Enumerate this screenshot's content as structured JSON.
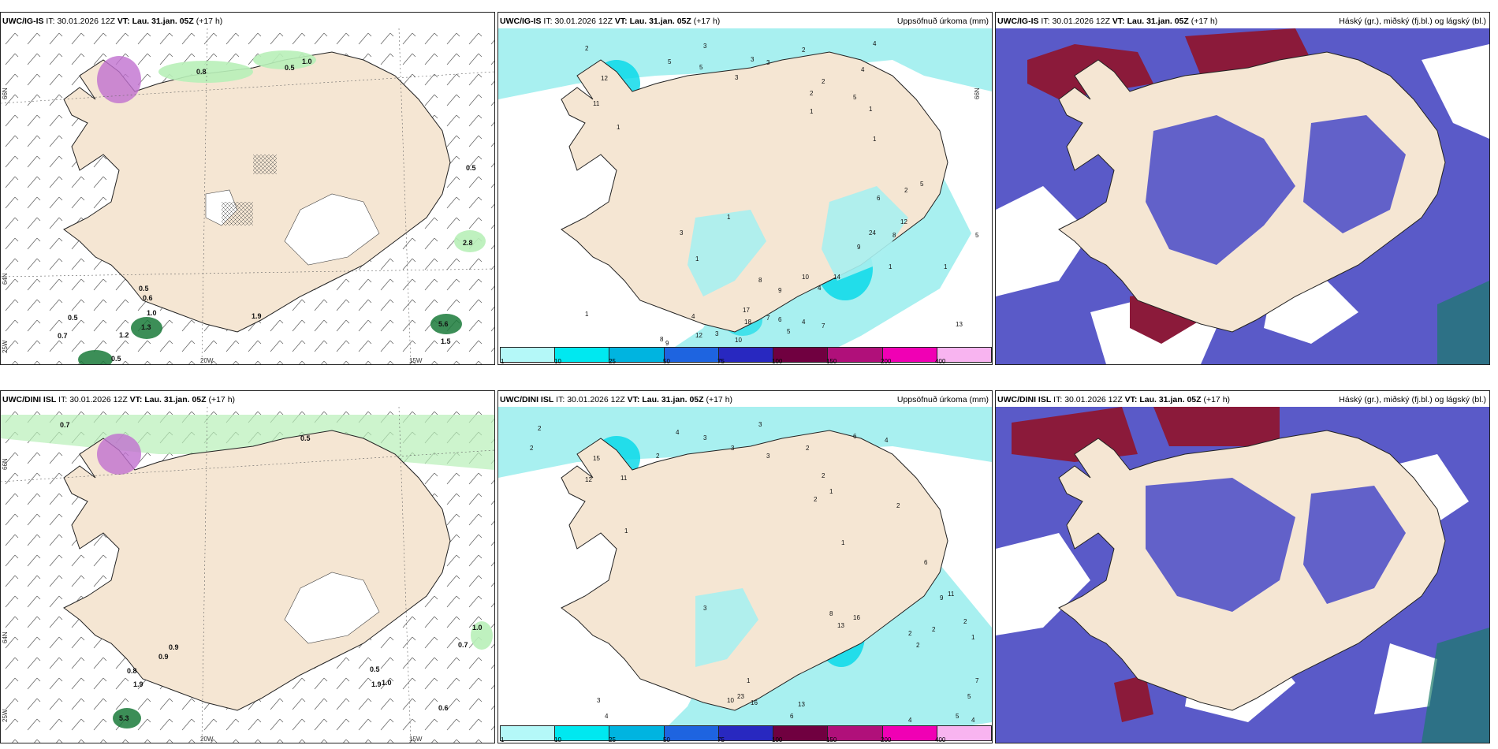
{
  "colors": {
    "land": "#f5e6d3",
    "precip": "#a8f0f0",
    "precip_strong": "#00d8e8",
    "cloud_low": "#5a5ac8",
    "cloud_high": "#8b1a3a",
    "green_precip": "#b8f0b8",
    "green_dark": "#1a7a3a"
  },
  "panels": [
    {
      "model": "UWC/IG-IS",
      "it_label": "IT:",
      "it": "30.01.2026 12Z",
      "vt_label": "VT:",
      "vt": "Lau. 31.jan. 05Z",
      "lead": "(+17 h)",
      "right": ""
    },
    {
      "model": "UWC/IG-IS",
      "it_label": "IT:",
      "it": "30.01.2026 12Z",
      "vt_label": "VT:",
      "vt": "Lau. 31.jan. 05Z",
      "lead": "(+17 h)",
      "right": "Uppsöfnuð úrkoma (mm)"
    },
    {
      "model": "UWC/IG-IS",
      "it_label": "IT:",
      "it": "30.01.2026 12Z",
      "vt_label": "VT:",
      "vt": "Lau. 31.jan. 05Z",
      "lead": "(+17 h)",
      "right": "Háský (gr.), miðský (fj.bl.) og lágský (bl.)"
    },
    {
      "model": "UWC/DINI ISL",
      "it_label": "IT:",
      "it": "30.01.2026 12Z",
      "vt_label": "VT:",
      "vt": "Lau. 31.jan. 05Z",
      "lead": "(+17 h)",
      "right": ""
    },
    {
      "model": "UWC/DINI ISL",
      "it_label": "IT:",
      "it": "30.01.2026 12Z",
      "vt_label": "VT:",
      "vt": "Lau. 31.jan. 05Z",
      "lead": "(+17 h)",
      "right": "Uppsöfnuð úrkoma (mm)"
    },
    {
      "model": "UWC/DINI ISL",
      "it_label": "IT:",
      "it": "30.01.2026 12Z",
      "vt_label": "VT:",
      "vt": "Lau. 31.jan. 05Z",
      "lead": "(+17 h)",
      "right": "Háský (gr.), miðský (fj.bl.) og lágský (bl.)"
    }
  ],
  "axes": {
    "lat_66": "66N",
    "lat_64": "64N",
    "lat_65": "65N",
    "lon_25": "25W",
    "lon_20": "20W",
    "lon_15": "15W"
  },
  "colorbar": {
    "labels": [
      "1",
      "10",
      "25",
      "50",
      "75",
      "100",
      "150",
      "200",
      "400"
    ],
    "colors": [
      "#b4f8f8",
      "#00e8f0",
      "#00b4e0",
      "#1e64e0",
      "#2828c0",
      "#700040",
      "#b0107a",
      "#f000b4",
      "#f8b4f0"
    ]
  },
  "precip_top_left": [
    "0.8",
    "1.0",
    "0.5",
    "0.5",
    "2.8",
    "0.5",
    "0.6",
    "0.5",
    "1.2",
    "1.3",
    "1.0",
    "0.7",
    "0.5",
    "1.9",
    "0.9",
    "5.6",
    "1.5"
  ],
  "precip_bottom_left": [
    "0.7",
    "0.5",
    "1.0",
    "0.7",
    "0.9",
    "0.9",
    "0.8",
    "1.9",
    "0.5",
    "1.9",
    "1.0",
    "5.3",
    "0.6"
  ],
  "accum_top": [
    "2",
    "3",
    "5",
    "3",
    "3",
    "5",
    "3",
    "2",
    "4",
    "12",
    "11",
    "1",
    "5",
    "4",
    "2",
    "2",
    "1",
    "1",
    "1",
    "2",
    "5",
    "6",
    "12",
    "8",
    "24",
    "9",
    "14",
    "4",
    "1",
    "1",
    "3",
    "1",
    "1",
    "10",
    "8",
    "9",
    "4",
    "17",
    "18",
    "7",
    "6",
    "5",
    "4",
    "7",
    "12",
    "9",
    "8",
    "10",
    "13",
    "5",
    "3",
    "1",
    "3"
  ],
  "accum_bottom": [
    "2",
    "2",
    "4",
    "3",
    "3",
    "3",
    "3",
    "2",
    "2",
    "6",
    "4",
    "15",
    "12",
    "11",
    "2",
    "1",
    "2",
    "2",
    "1",
    "1",
    "9",
    "8",
    "13",
    "16",
    "2",
    "1",
    "10",
    "23",
    "16",
    "13",
    "5",
    "7",
    "4",
    "3",
    "6",
    "4",
    "4",
    "5",
    "6",
    "11",
    "2",
    "2",
    "2",
    "1",
    "3"
  ]
}
